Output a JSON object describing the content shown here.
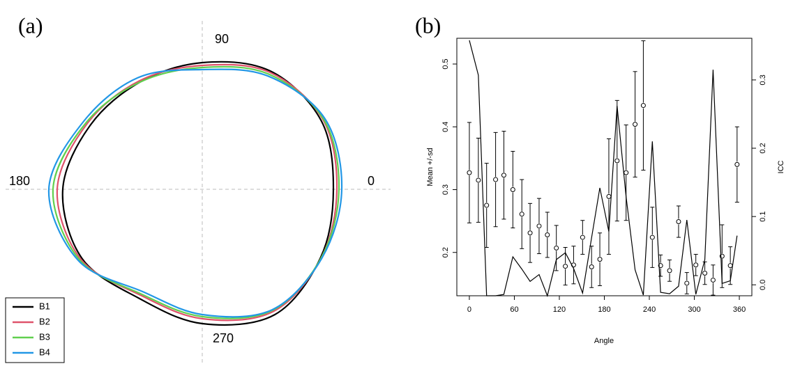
{
  "chart_data": [
    {
      "type": "polar-line",
      "label": "(a)",
      "theta": [
        0,
        30,
        60,
        90,
        120,
        150,
        180,
        210,
        240,
        270,
        300,
        330
      ],
      "thetaticks": [
        0,
        90,
        180,
        270
      ],
      "rlim": [
        0,
        230
      ],
      "legend": "bottom-left",
      "series": [
        {
          "name": "B1",
          "color": "#000000",
          "values": [
            188,
            197,
            196,
            182,
            178,
            185,
            200,
            199,
            181,
            193,
            208,
            196
          ]
        },
        {
          "name": "B2",
          "color": "#DF536B",
          "values": [
            193,
            200,
            194,
            178,
            180,
            190,
            208,
            201,
            176,
            186,
            203,
            197
          ]
        },
        {
          "name": "B3",
          "color": "#61D04F",
          "values": [
            196,
            201,
            191,
            175,
            178,
            192,
            214,
            203,
            174,
            183,
            201,
            197
          ]
        },
        {
          "name": "B4",
          "color": "#2297E6",
          "values": [
            200,
            203,
            188,
            172,
            185,
            196,
            220,
            205,
            170,
            180,
            200,
            198
          ]
        }
      ]
    },
    {
      "type": "errorbar-line",
      "label": "(b)",
      "x_label": "Angle",
      "y_label": "Mean +/-sd",
      "y2_label": "ICC",
      "x": [
        0,
        12,
        23,
        35,
        46,
        58,
        70,
        81,
        93,
        104,
        116,
        128,
        139,
        151,
        163,
        174,
        186,
        197,
        209,
        221,
        232,
        244,
        255,
        267,
        279,
        290,
        302,
        314,
        325,
        337,
        348,
        357
      ],
      "xlim": [
        -16.7,
        376.7
      ],
      "xticks": [
        0,
        60,
        120,
        180,
        240,
        300,
        360
      ],
      "ylim": [
        0.131,
        0.541
      ],
      "yticks": [
        0.2,
        0.3,
        0.4,
        0.5
      ],
      "y2lim": [
        -0.016,
        0.361
      ],
      "y2ticks": [
        {
          "value": 0,
          "label": "0.0"
        },
        0.1,
        0.2,
        0.3
      ],
      "series": [
        {
          "style": "points",
          "color": "#000000",
          "values": [
            0.327,
            0.315,
            0.275,
            0.316,
            0.323,
            0.3,
            0.261,
            0.231,
            0.242,
            0.228,
            0.207,
            0.178,
            0.18,
            0.224,
            0.177,
            0.189,
            0.289,
            0.346,
            0.327,
            0.404,
            0.434,
            0.224,
            0.179,
            0.171,
            0.249,
            0.151,
            0.18,
            0.167,
            0.156,
            0.194,
            0.179,
            0.34
          ],
          "errors": [
            0.08,
            0.067,
            0.067,
            0.075,
            0.07,
            0.061,
            0.055,
            0.047,
            0.044,
            0.036,
            0.036,
            0.03,
            0.03,
            0.027,
            0.033,
            0.042,
            0.092,
            0.096,
            0.076,
            0.084,
            0.103,
            0.048,
            0.017,
            0.017,
            0.025,
            0.017,
            0.017,
            0.018,
            0.024,
            0.05,
            0.03,
            0.06
          ]
        },
        {
          "style": "line",
          "axis": "y2",
          "color": "#000000",
          "values": [
            0.358,
            0.307,
            -0.016,
            -0.016,
            -0.014,
            0.041,
            0.023,
            0.005,
            0.015,
            -0.016,
            0.037,
            0.047,
            0.024,
            -0.012,
            0.069,
            0.142,
            0.078,
            0.262,
            0.129,
            0.022,
            -0.015,
            0.21,
            -0.011,
            -0.013,
            -0.002,
            0.095,
            -0.014,
            0.037,
            0.315,
            0.002,
            0.006,
            0.072
          ]
        }
      ]
    }
  ]
}
